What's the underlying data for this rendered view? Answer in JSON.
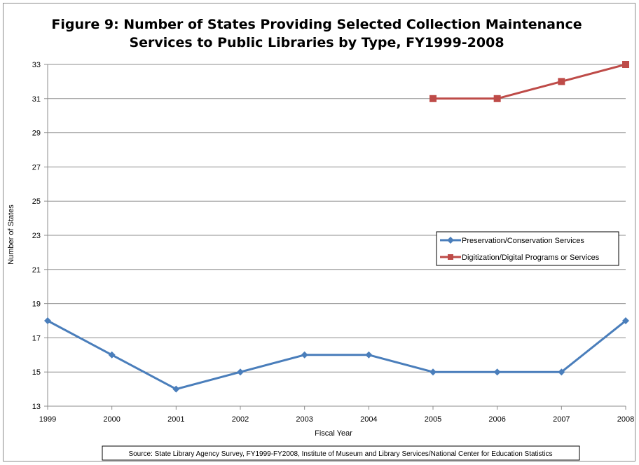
{
  "chart_data": {
    "type": "line",
    "title": [
      "Figure 9: Number of States Providing Selected Collection Maintenance",
      "Services to Public Libraries by Type, FY1999-2008"
    ],
    "xlabel": "Fiscal Year",
    "ylabel": "Number of States",
    "x": [
      "1999",
      "2000",
      "2001",
      "2002",
      "2003",
      "2004",
      "2005",
      "2006",
      "2007",
      "2008"
    ],
    "ylim": [
      13,
      33
    ],
    "yticks": [
      13,
      15,
      17,
      19,
      21,
      23,
      25,
      27,
      29,
      31,
      33
    ],
    "grid": true,
    "legend_position": "right",
    "series": [
      {
        "name": "Preservation/Conservation Services",
        "color": "#4a7ebb",
        "marker": "diamond",
        "values": [
          18,
          16,
          14,
          15,
          16,
          16,
          15,
          15,
          15,
          18
        ]
      },
      {
        "name": "Digitization/Digital  Programs or Services",
        "color": "#be4b48",
        "marker": "square",
        "values": [
          null,
          null,
          null,
          null,
          null,
          null,
          31,
          31,
          32,
          33
        ]
      }
    ],
    "source": "Source: State Library Agency Survey, FY1999-FY2008, Institute of Museum and Library Services/National Center for Education Statistics"
  }
}
